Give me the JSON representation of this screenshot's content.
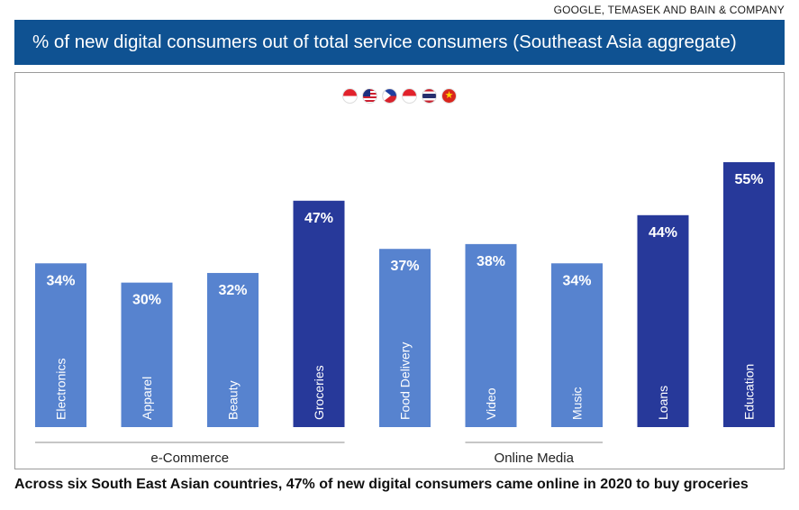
{
  "source": "GOOGLE, TEMASEK AND BAIN & COMPANY",
  "title": "% of new digital consumers out of total service consumers (Southeast Asia aggregate)",
  "caption": "Across six South East Asian countries, 47% of new digital consumers came online in 2020 to buy groceries",
  "flags": [
    {
      "name": "indonesia-flag-icon"
    },
    {
      "name": "malaysia-flag-icon"
    },
    {
      "name": "philippines-flag-icon"
    },
    {
      "name": "singapore-flag-icon"
    },
    {
      "name": "thailand-flag-icon"
    },
    {
      "name": "vietnam-flag-icon",
      "glyph": "★"
    }
  ],
  "colors": {
    "light": "#5783cf",
    "dark": "#27399a",
    "title_bg": "#0f5292"
  },
  "chart_data": {
    "type": "bar",
    "categories": [
      "Electronics",
      "Apparel",
      "Beauty",
      "Groceries",
      "Food Delivery",
      "Video",
      "Music",
      "Loans",
      "Education"
    ],
    "values": [
      34,
      30,
      32,
      47,
      37,
      38,
      34,
      44,
      55
    ],
    "data_labels": [
      "34%",
      "30%",
      "32%",
      "47%",
      "37%",
      "38%",
      "34%",
      "44%",
      "55%"
    ],
    "highlight": [
      false,
      false,
      false,
      true,
      false,
      false,
      false,
      true,
      true
    ],
    "ylim": [
      0,
      55
    ],
    "unit": "%",
    "groups": [
      {
        "label": "e-Commerce",
        "start": 0,
        "end": 3
      },
      {
        "label": "Online Media",
        "start": 5,
        "end": 6
      }
    ]
  }
}
